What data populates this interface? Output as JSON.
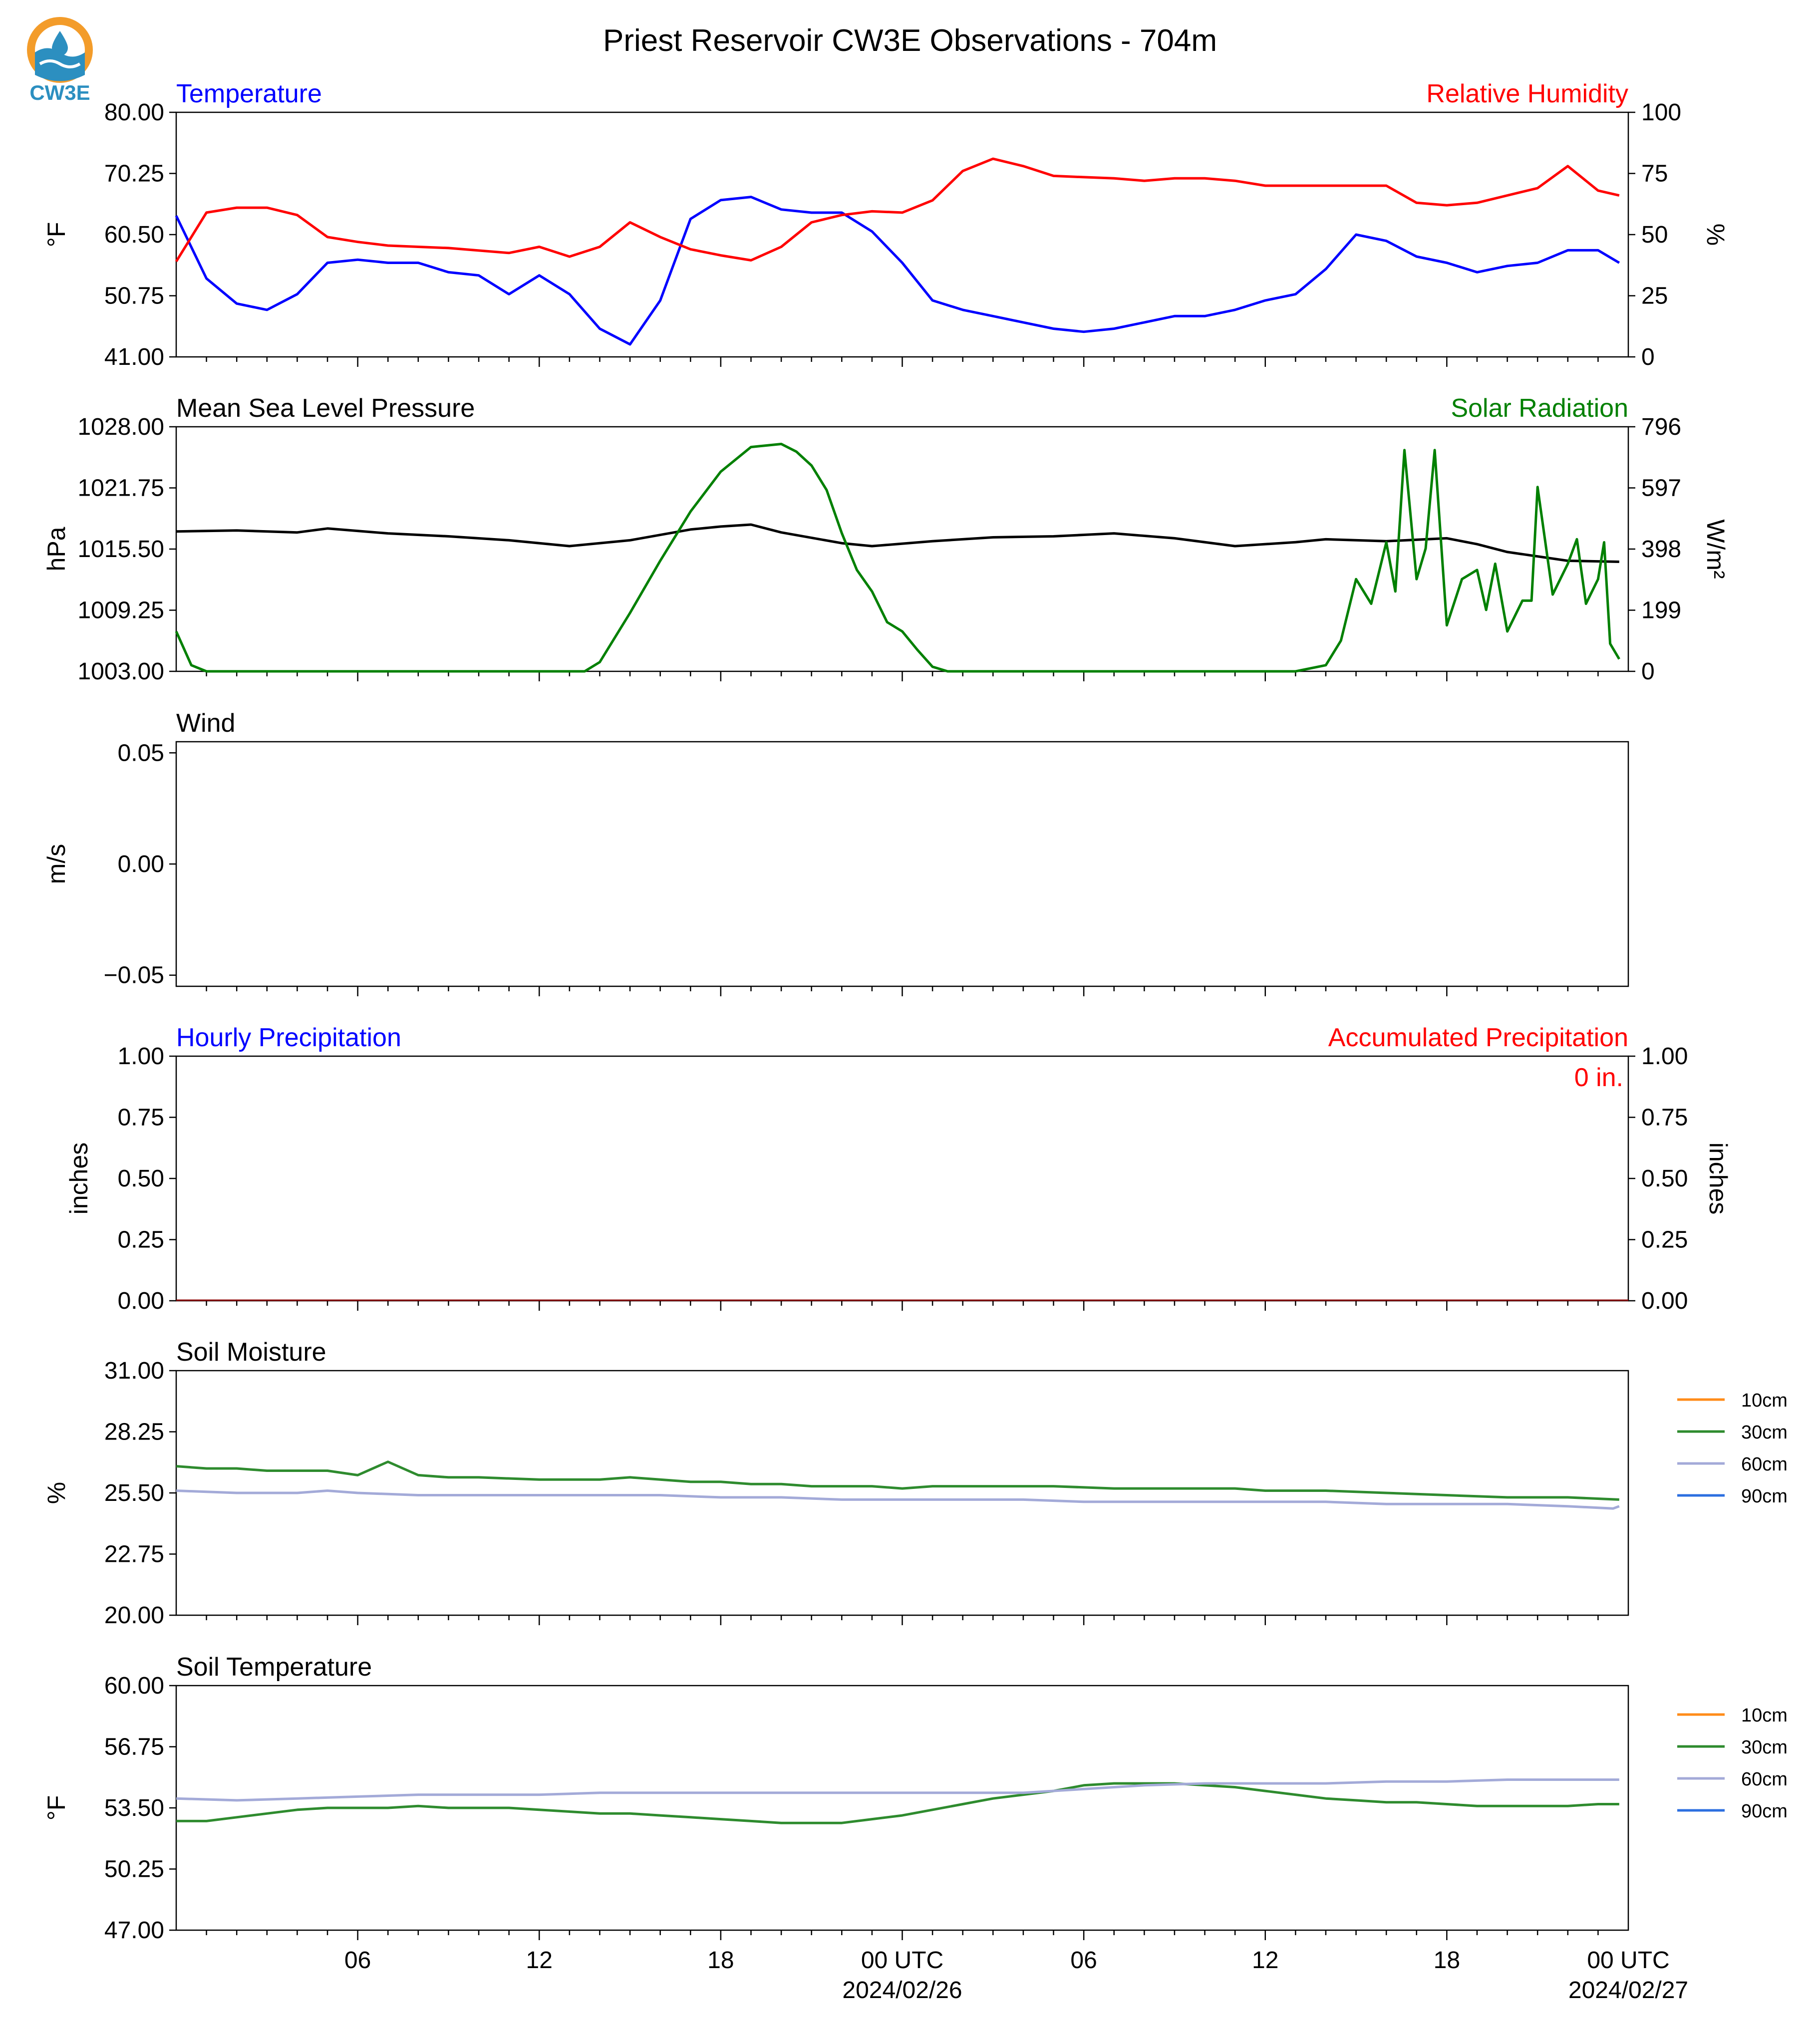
{
  "title": "Priest Reservoir CW3E Observations - 704m",
  "logo": {
    "text": "CW3E",
    "icon": "cw3e-logo-icon",
    "colors": {
      "sun": "#f39c2a",
      "wave": "#2c8fc0"
    }
  },
  "colors": {
    "blue": "#0000ff",
    "red": "#ff0000",
    "green": "#008000",
    "black": "#000000",
    "soil_10cm": "#ff8c1a",
    "soil_30cm": "#2e8b2e",
    "soil_60cm": "#a3aad8",
    "soil_90cm": "#2c6fe0"
  },
  "time_axis": {
    "ticks": [
      "06",
      "12",
      "18",
      "00 UTC",
      "06",
      "12",
      "18",
      "00 UTC"
    ],
    "dates": [
      "2024/02/26",
      "2024/02/27"
    ]
  },
  "chart_data": [
    {
      "type": "line",
      "title_left": "Temperature",
      "title_right": "Relative Humidity",
      "ylabel": "°F",
      "ylabel_right": "%",
      "ylim": [
        41,
        80
      ],
      "ylim_right": [
        0,
        100
      ],
      "yticks": [
        "80.00",
        "70.25",
        "60.50",
        "50.75",
        "41.00"
      ],
      "yticks_right": [
        "100",
        "75",
        "50",
        "25",
        "0"
      ],
      "x_hours": [
        0,
        1,
        2,
        3,
        4,
        5,
        6,
        7,
        8,
        9,
        10,
        11,
        12,
        13,
        14,
        15,
        16,
        17,
        18,
        19,
        20,
        21,
        22,
        23,
        24,
        25,
        26,
        27,
        28,
        29,
        30,
        31,
        32,
        33,
        34,
        35,
        36,
        37,
        38,
        39,
        40,
        41,
        42,
        43,
        44,
        45,
        46,
        47,
        47.7
      ],
      "series": [
        {
          "color": "#0000ff",
          "axis": "left",
          "values": [
            63.5,
            53.5,
            49.5,
            48.5,
            51,
            56,
            56.5,
            56,
            56,
            54.5,
            54,
            51,
            54,
            51,
            45.5,
            43,
            50,
            63,
            66,
            66.5,
            64.5,
            64,
            64,
            61,
            56,
            50,
            48.5,
            47.5,
            46.5,
            45.5,
            45,
            45.5,
            46.5,
            47.5,
            47.5,
            48.5,
            50,
            51,
            55,
            60.5,
            59.5,
            57,
            56,
            54.5,
            55.5,
            56,
            58,
            58,
            56
          ]
        },
        {
          "color": "#ff0000",
          "axis": "right",
          "values": [
            39,
            59,
            61,
            61,
            58,
            49,
            47,
            45.5,
            45,
            44.5,
            43.5,
            42.5,
            45,
            41,
            45,
            55,
            49,
            44,
            41.5,
            39.5,
            45,
            55,
            58,
            59.5,
            59,
            64,
            76,
            81,
            78,
            74,
            73.5,
            73,
            72,
            73,
            73,
            72,
            70,
            70,
            70,
            70,
            70,
            63,
            62,
            63,
            66,
            69,
            78,
            68,
            66
          ]
        }
      ]
    },
    {
      "type": "line",
      "title_left": "Mean Sea Level Pressure",
      "title_right": "Solar Radiation",
      "ylabel": "hPa",
      "ylabel_right": "W/m²",
      "ylim": [
        1003,
        1028
      ],
      "ylim_right": [
        0,
        796
      ],
      "yticks": [
        "1028.00",
        "1021.75",
        "1015.50",
        "1009.25",
        "1003.00"
      ],
      "yticks_right": [
        "796",
        "597",
        "398",
        "199",
        "0"
      ],
      "series": [
        {
          "color": "#000000",
          "axis": "left",
          "x": [
            0,
            2,
            4,
            5,
            7,
            9,
            11,
            13,
            15,
            17,
            18,
            19,
            20,
            22,
            23,
            25,
            27,
            29,
            31,
            33,
            35,
            37,
            38,
            40,
            42,
            43,
            44,
            46,
            47.7
          ],
          "values": [
            1017.3,
            1017.4,
            1017.2,
            1017.6,
            1017.1,
            1016.8,
            1016.4,
            1015.8,
            1016.4,
            1017.5,
            1017.8,
            1018.0,
            1017.2,
            1016.1,
            1015.8,
            1016.3,
            1016.7,
            1016.8,
            1017.1,
            1016.6,
            1015.8,
            1016.2,
            1016.5,
            1016.3,
            1016.6,
            1016.0,
            1015.2,
            1014.3,
            1014.2
          ]
        },
        {
          "color": "#008000",
          "axis": "right",
          "x": [
            0,
            0.5,
            1,
            5,
            10,
            13.5,
            14,
            15,
            16,
            17,
            18,
            19,
            20,
            20.5,
            21,
            21.5,
            22,
            22.5,
            23,
            23.5,
            24,
            24.5,
            25,
            25.5,
            26,
            30,
            35,
            37,
            38,
            38.5,
            39,
            39.5,
            40,
            40.3,
            40.6,
            41,
            41.3,
            41.6,
            42,
            42.5,
            43,
            43.3,
            43.6,
            44,
            44.5,
            44.8,
            45,
            45.5,
            46,
            46.3,
            46.6,
            47,
            47.2,
            47.4,
            47.7
          ],
          "values": [
            130,
            20,
            0,
            0,
            0,
            0,
            30,
            190,
            360,
            520,
            650,
            730,
            740,
            715,
            670,
            590,
            450,
            330,
            260,
            160,
            130,
            70,
            15,
            0,
            0,
            0,
            0,
            0,
            20,
            100,
            300,
            220,
            420,
            260,
            720,
            300,
            400,
            720,
            150,
            300,
            330,
            200,
            350,
            130,
            230,
            230,
            600,
            250,
            350,
            430,
            220,
            300,
            420,
            90,
            40
          ]
        }
      ]
    },
    {
      "type": "line",
      "title_left": "Wind",
      "ylabel": "m/s",
      "ylim": [
        -0.055,
        0.055
      ],
      "yticks": [
        "0.05",
        "0.00",
        "−0.05"
      ],
      "series": []
    },
    {
      "type": "bar",
      "title_left": "Hourly Precipitation",
      "title_right": "Accumulated Precipitation",
      "ylabel": "inches",
      "ylabel_right": "inches",
      "ylim": [
        0,
        1
      ],
      "ylim_right": [
        0,
        1
      ],
      "yticks": [
        "1.00",
        "0.75",
        "0.50",
        "0.25",
        "0.00"
      ],
      "yticks_right": [
        "1.00",
        "0.75",
        "0.50",
        "0.25",
        "0.00"
      ],
      "accumulated_label": "0 in.",
      "hourly_values": [
        0
      ],
      "accumulated_values": [
        0
      ]
    },
    {
      "type": "line",
      "title_left": "Soil Moisture",
      "ylabel": "%",
      "ylim": [
        20,
        31
      ],
      "yticks": [
        "31.00",
        "28.25",
        "25.50",
        "22.75",
        "20.00"
      ],
      "legend": [
        "10cm",
        "30cm",
        "60cm",
        "90cm"
      ],
      "series": [
        {
          "name": "30cm",
          "color": "#2e8b2e",
          "x": [
            0,
            1,
            2,
            3,
            5,
            6,
            7,
            8,
            9,
            10,
            12,
            13,
            14,
            15,
            16,
            17,
            18,
            19,
            20,
            21,
            23,
            24,
            25,
            27,
            29,
            31,
            33,
            35,
            36,
            38,
            40,
            42,
            44,
            46,
            47.7
          ],
          "values": [
            26.7,
            26.6,
            26.6,
            26.5,
            26.5,
            26.3,
            26.9,
            26.3,
            26.2,
            26.2,
            26.1,
            26.1,
            26.1,
            26.2,
            26.1,
            26.0,
            26.0,
            25.9,
            25.9,
            25.8,
            25.8,
            25.7,
            25.8,
            25.8,
            25.8,
            25.7,
            25.7,
            25.7,
            25.6,
            25.6,
            25.5,
            25.4,
            25.3,
            25.3,
            25.2
          ]
        },
        {
          "name": "60cm",
          "color": "#a3aad8",
          "x": [
            0,
            2,
            4,
            5,
            6,
            8,
            10,
            12,
            14,
            16,
            18,
            20,
            22,
            24,
            26,
            28,
            30,
            32,
            34,
            36,
            38,
            40,
            42,
            44,
            46,
            47.5,
            47.7
          ],
          "values": [
            25.6,
            25.5,
            25.5,
            25.6,
            25.5,
            25.4,
            25.4,
            25.4,
            25.4,
            25.4,
            25.3,
            25.3,
            25.2,
            25.2,
            25.2,
            25.2,
            25.1,
            25.1,
            25.1,
            25.1,
            25.1,
            25.0,
            25.0,
            25.0,
            24.9,
            24.8,
            24.9
          ]
        }
      ]
    },
    {
      "type": "line",
      "title_left": "Soil Temperature",
      "ylabel": "°F",
      "ylim": [
        47,
        60
      ],
      "yticks": [
        "60.00",
        "56.75",
        "53.50",
        "50.25",
        "47.00"
      ],
      "legend": [
        "10cm",
        "30cm",
        "60cm",
        "90cm"
      ],
      "series": [
        {
          "name": "30cm",
          "color": "#2e8b2e",
          "x": [
            0,
            1,
            2,
            3,
            4,
            5,
            6,
            7,
            8,
            9,
            10,
            11,
            12,
            13,
            14,
            15,
            16,
            17,
            18,
            19,
            20,
            21,
            22,
            23,
            24,
            25,
            26,
            27,
            28,
            29,
            30,
            31,
            32,
            33,
            34,
            35,
            36,
            37,
            38,
            39,
            40,
            41,
            42,
            43,
            44,
            45,
            46,
            47,
            47.7
          ],
          "values": [
            52.8,
            52.8,
            53.0,
            53.2,
            53.4,
            53.5,
            53.5,
            53.5,
            53.6,
            53.5,
            53.5,
            53.5,
            53.4,
            53.3,
            53.2,
            53.2,
            53.1,
            53.0,
            52.9,
            52.8,
            52.7,
            52.7,
            52.7,
            52.9,
            53.1,
            53.4,
            53.7,
            54.0,
            54.2,
            54.4,
            54.7,
            54.8,
            54.8,
            54.8,
            54.7,
            54.6,
            54.4,
            54.2,
            54.0,
            53.9,
            53.8,
            53.8,
            53.7,
            53.6,
            53.6,
            53.6,
            53.6,
            53.7,
            53.7
          ]
        },
        {
          "name": "60cm",
          "color": "#a3aad8",
          "x": [
            0,
            2,
            4,
            6,
            8,
            10,
            12,
            14,
            16,
            18,
            20,
            22,
            24,
            26,
            28,
            30,
            32,
            34,
            36,
            38,
            40,
            42,
            44,
            46,
            47.7
          ],
          "values": [
            54.0,
            53.9,
            54.0,
            54.1,
            54.2,
            54.2,
            54.2,
            54.3,
            54.3,
            54.3,
            54.3,
            54.3,
            54.3,
            54.3,
            54.3,
            54.5,
            54.7,
            54.8,
            54.8,
            54.8,
            54.9,
            54.9,
            55.0,
            55.0,
            55.0
          ]
        }
      ]
    }
  ]
}
